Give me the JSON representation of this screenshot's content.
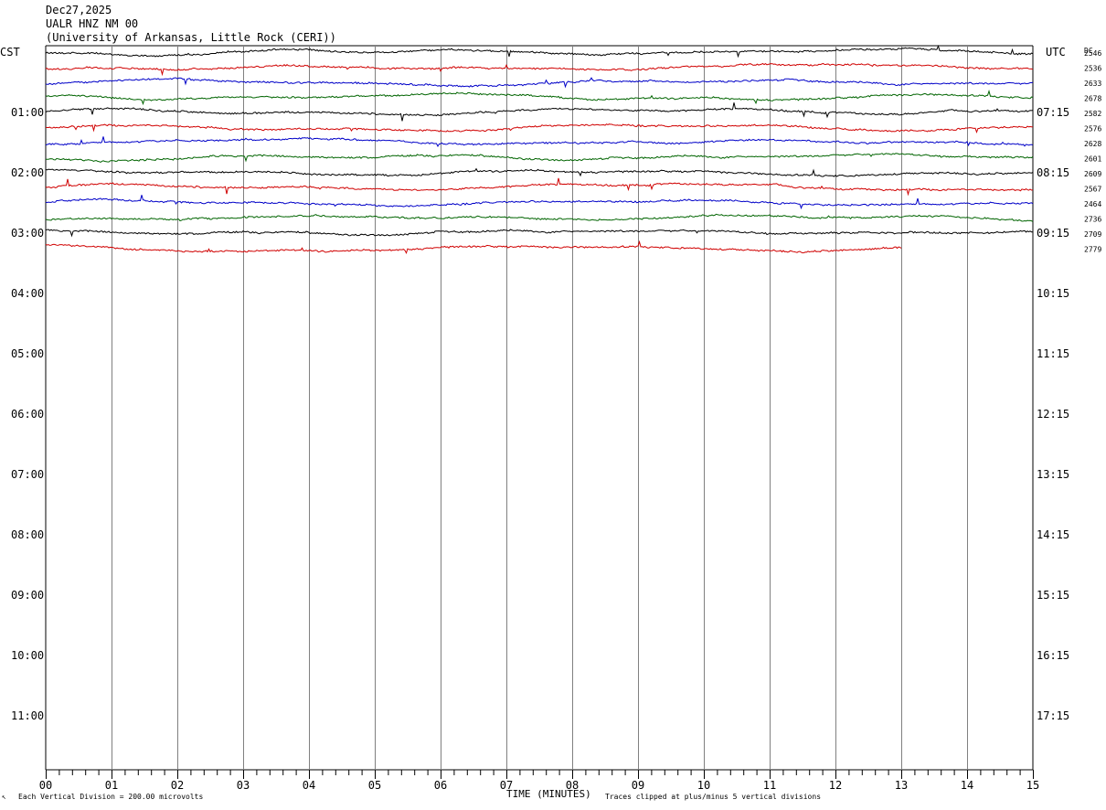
{
  "header": {
    "date": "Dec27,2025",
    "station": "UALR HNZ NM 00",
    "institution": "(University of Arkansas, Little Rock (CERI))"
  },
  "left_zone_label": "CST",
  "right_zone_label": "UTC",
  "dc_label": "DC",
  "footer": {
    "corner_mark": "↖",
    "scale_text": "Each Vertical Division =  200.00 microvolts",
    "xlabel": "TIME (MINUTES)",
    "clip_text": "Traces clipped at plus/minus 5 vertical divisions"
  },
  "colors": {
    "black": "#000000",
    "red": "#d00000",
    "blue": "#0000c8",
    "green": "#006400",
    "grid": "#808080"
  },
  "chart_data": {
    "type": "line",
    "xlabel": "TIME (MINUTES)",
    "xlim": [
      0,
      15
    ],
    "x_ticks": [
      "00",
      "01",
      "02",
      "03",
      "04",
      "05",
      "06",
      "07",
      "08",
      "09",
      "10",
      "11",
      "12",
      "13",
      "14",
      "15"
    ],
    "left_hour_labels": [
      "01:00",
      "02:00",
      "03:00",
      "04:00",
      "05:00",
      "06:00",
      "07:00",
      "08:00",
      "09:00",
      "10:00",
      "11:00"
    ],
    "right_hour_labels": [
      "07:15",
      "08:15",
      "09:15",
      "10:15",
      "11:15",
      "12:15",
      "13:15",
      "14:15",
      "15:15",
      "16:15",
      "17:15"
    ],
    "rows_total": 48,
    "traces_per_hour": 4,
    "color_cycle": [
      "black",
      "red",
      "blue",
      "green"
    ],
    "dc_offsets": [
      "2546",
      "2536",
      "2633",
      "2678",
      "2582",
      "2576",
      "2628",
      "2601",
      "2609",
      "2567",
      "2464",
      "2736",
      "2709",
      "2779"
    ],
    "last_trace_end_minute": 13.0,
    "grid": true
  }
}
